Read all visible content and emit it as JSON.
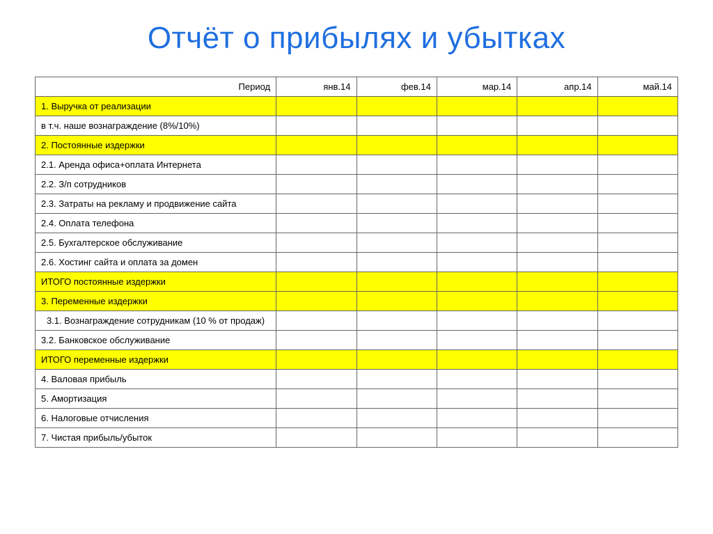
{
  "title": {
    "text": "Отчёт о прибылях и убытках",
    "color": "#1f6fe0",
    "fontsize": 44
  },
  "table": {
    "border_color": "#666666",
    "background_color": "#ffffff",
    "highlight_color": "#ffff00",
    "fontsize": 13,
    "label_col_width": 345,
    "month_col_width": 115,
    "header": {
      "label": "Период",
      "months": [
        "янв.14",
        "фев.14",
        "мар.14",
        "апр.14",
        "май.14"
      ]
    },
    "rows": [
      {
        "label": "1. Выручка от реализации",
        "highlight": true,
        "values": [
          "",
          "",
          "",
          "",
          ""
        ]
      },
      {
        "label": "в т.ч. наше вознаграждение (8%/10%)",
        "highlight": false,
        "values": [
          "",
          "",
          "",
          "",
          ""
        ]
      },
      {
        "label": "2. Постоянные издержки",
        "highlight": true,
        "values": [
          "",
          "",
          "",
          "",
          ""
        ]
      },
      {
        "label": "2.1. Аренда офиса+оплата  Интернета",
        "highlight": false,
        "values": [
          "",
          "",
          "",
          "",
          ""
        ]
      },
      {
        "label": "2.2. З/п сотрудников",
        "highlight": false,
        "values": [
          "",
          "",
          "",
          "",
          ""
        ]
      },
      {
        "label": "2.3. Затраты на рекламу и продвижение сайта",
        "highlight": false,
        "values": [
          "",
          "",
          "",
          "",
          ""
        ]
      },
      {
        "label": "2.4. Оплата телефона",
        "highlight": false,
        "values": [
          "",
          "",
          "",
          "",
          ""
        ]
      },
      {
        "label": "2.5. Бухгалтерское обслуживание",
        "highlight": false,
        "values": [
          "",
          "",
          "",
          "",
          ""
        ]
      },
      {
        "label": "2.6. Хостинг сайта и оплата за домен",
        "highlight": false,
        "values": [
          "",
          "",
          "",
          "",
          ""
        ]
      },
      {
        "label": "ИТОГО постоянные издержки",
        "highlight": true,
        "values": [
          "",
          "",
          "",
          "",
          ""
        ]
      },
      {
        "label": "3. Переменные издержки",
        "highlight": true,
        "values": [
          "",
          "",
          "",
          "",
          ""
        ]
      },
      {
        "label": "3.1. Вознаграждение сотрудникам (10 % от продаж)",
        "highlight": false,
        "indent": true,
        "values": [
          "",
          "",
          "",
          "",
          ""
        ]
      },
      {
        "label": "3.2. Банковское обслуживание",
        "highlight": false,
        "values": [
          "",
          "",
          "",
          "",
          ""
        ]
      },
      {
        "label": "ИТОГО переменные издержки",
        "highlight": true,
        "values": [
          "",
          "",
          "",
          "",
          ""
        ]
      },
      {
        "label": "4. Валовая прибыль",
        "highlight": false,
        "values": [
          "",
          "",
          "",
          "",
          ""
        ]
      },
      {
        "label": "5. Амортизация",
        "highlight": false,
        "values": [
          "",
          "",
          "",
          "",
          ""
        ]
      },
      {
        "label": "6. Налоговые отчисления",
        "highlight": false,
        "values": [
          "",
          "",
          "",
          "",
          ""
        ]
      },
      {
        "label": "7. Чистая прибыль/убыток",
        "highlight": false,
        "values": [
          "",
          "",
          "",
          "",
          ""
        ]
      }
    ]
  }
}
